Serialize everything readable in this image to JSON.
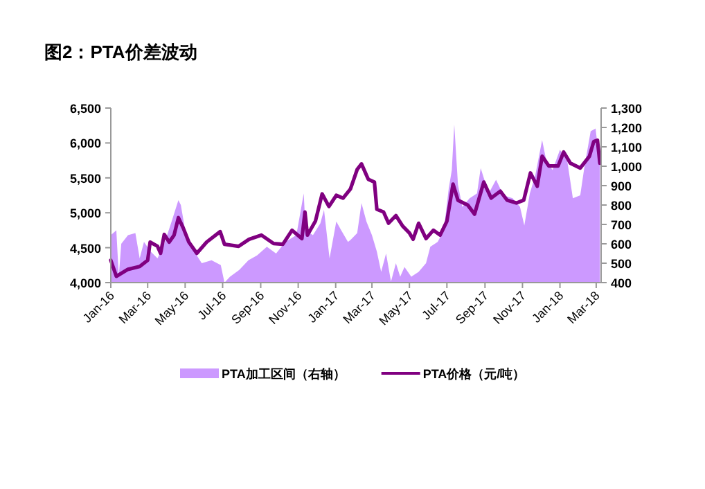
{
  "chart_data": {
    "type": "line",
    "title": "图2：PTA价差波动",
    "legend": "bottom",
    "xlim": [
      "2016-01-01",
      "2018-03-09"
    ],
    "xticks": [
      {
        "value": "2016-01-01",
        "label": "Jan-16"
      },
      {
        "value": "2016-03-01",
        "label": "Mar-16"
      },
      {
        "value": "2016-05-01",
        "label": "May-16"
      },
      {
        "value": "2016-07-01",
        "label": "Jul-16"
      },
      {
        "value": "2016-09-01",
        "label": "Sep-16"
      },
      {
        "value": "2016-11-01",
        "label": "Nov-16"
      },
      {
        "value": "2017-01-01",
        "label": "Jan-17"
      },
      {
        "value": "2017-03-01",
        "label": "Mar-17"
      },
      {
        "value": "2017-05-01",
        "label": "May-17"
      },
      {
        "value": "2017-07-01",
        "label": "Jul-17"
      },
      {
        "value": "2017-09-01",
        "label": "Sep-17"
      },
      {
        "value": "2017-11-01",
        "label": "Nov-17"
      },
      {
        "value": "2018-01-01",
        "label": "Jan-18"
      },
      {
        "value": "2018-03-01",
        "label": "Mar-18"
      }
    ],
    "ylim": [
      4000,
      6500
    ],
    "yticks": [
      {
        "value": 4000,
        "label": "4,000"
      },
      {
        "value": 4500,
        "label": "4,500"
      },
      {
        "value": 5000,
        "label": "5,000"
      },
      {
        "value": 5500,
        "label": "5,500"
      },
      {
        "value": 6000,
        "label": "6,000"
      },
      {
        "value": 6500,
        "label": "6,500"
      }
    ],
    "y2lim": [
      400,
      1300
    ],
    "y2ticks": [
      400,
      500,
      600,
      700,
      800,
      900,
      {
        "value": 1000,
        "label": "1,000"
      },
      {
        "value": 1100,
        "label": "1,100"
      },
      {
        "value": 1200,
        "label": "1,200"
      },
      {
        "value": 1300,
        "label": "1,300"
      }
    ],
    "series": [
      {
        "name": "PTA加工区间（右轴）",
        "type": "area",
        "axis": "y2",
        "color": "#cc99ff",
        "x": [
          "2016-01-01",
          "2016-01-10",
          "2016-01-14",
          "2016-01-18",
          "2016-01-29",
          "2016-02-10",
          "2016-02-17",
          "2016-02-24",
          "2016-03-06",
          "2016-03-17",
          "2016-03-28",
          "2016-04-09",
          "2016-04-20",
          "2016-04-24",
          "2016-05-01",
          "2016-05-13",
          "2016-05-28",
          "2016-06-13",
          "2016-06-28",
          "2016-07-04",
          "2016-07-13",
          "2016-07-28",
          "2016-08-12",
          "2016-08-26",
          "2016-09-11",
          "2016-09-26",
          "2016-10-11",
          "2016-10-29",
          "2016-11-10",
          "2016-11-13",
          "2016-11-25",
          "2016-12-07",
          "2016-12-13",
          "2016-12-22",
          "2017-01-02",
          "2017-01-10",
          "2017-01-21",
          "2017-01-25",
          "2017-02-05",
          "2017-02-12",
          "2017-02-20",
          "2017-03-01",
          "2017-03-09",
          "2017-03-16",
          "2017-03-24",
          "2017-04-01",
          "2017-04-09",
          "2017-04-16",
          "2017-04-23",
          "2017-05-04",
          "2017-05-16",
          "2017-05-28",
          "2017-06-04",
          "2017-06-16",
          "2017-06-26",
          "2017-07-04",
          "2017-07-09",
          "2017-07-13",
          "2017-07-19",
          "2017-07-26",
          "2017-08-07",
          "2017-08-19",
          "2017-08-25",
          "2017-09-07",
          "2017-09-19",
          "2017-10-01",
          "2017-10-16",
          "2017-10-28",
          "2017-11-04",
          "2017-11-13",
          "2017-11-22",
          "2017-12-03",
          "2017-12-10",
          "2017-12-20",
          "2018-01-01",
          "2018-01-13",
          "2018-01-22",
          "2018-02-03",
          "2018-02-10",
          "2018-02-20",
          "2018-02-28",
          "2018-03-07"
        ],
        "values": [
          645,
          670,
          430,
          600,
          645,
          655,
          525,
          610,
          560,
          525,
          600,
          715,
          825,
          800,
          670,
          575,
          500,
          515,
          490,
          400,
          430,
          465,
          515,
          540,
          585,
          550,
          610,
          645,
          860,
          670,
          645,
          705,
          775,
          525,
          715,
          670,
          610,
          620,
          655,
          810,
          715,
          645,
          560,
          455,
          550,
          405,
          500,
          430,
          480,
          430,
          455,
          500,
          585,
          610,
          670,
          885,
          980,
          1215,
          905,
          790,
          835,
          860,
          990,
          860,
          930,
          850,
          835,
          790,
          695,
          860,
          955,
          1135,
          1025,
          980,
          1085,
          1025,
          835,
          850,
          1000,
          1180,
          1195,
          1000
        ]
      },
      {
        "name": "PTA价格（元/吨）",
        "type": "line",
        "axis": "y",
        "color": "#800080",
        "x": [
          "2016-01-01",
          "2016-01-10",
          "2016-01-29",
          "2016-02-17",
          "2016-03-01",
          "2016-03-05",
          "2016-03-17",
          "2016-03-22",
          "2016-03-28",
          "2016-04-05",
          "2016-04-13",
          "2016-04-20",
          "2016-04-28",
          "2016-05-07",
          "2016-05-20",
          "2016-06-05",
          "2016-06-27",
          "2016-07-04",
          "2016-07-27",
          "2016-08-13",
          "2016-09-02",
          "2016-09-22",
          "2016-10-07",
          "2016-10-22",
          "2016-11-07",
          "2016-11-12",
          "2016-11-16",
          "2016-11-29",
          "2016-12-10",
          "2016-12-21",
          "2017-01-02",
          "2017-01-13",
          "2017-01-25",
          "2017-02-05",
          "2017-02-12",
          "2017-02-23",
          "2017-03-05",
          "2017-03-09",
          "2017-03-20",
          "2017-03-28",
          "2017-04-09",
          "2017-04-20",
          "2017-05-01",
          "2017-05-07",
          "2017-05-16",
          "2017-05-28",
          "2017-06-09",
          "2017-06-20",
          "2017-07-01",
          "2017-07-11",
          "2017-07-19",
          "2017-08-04",
          "2017-08-15",
          "2017-08-30",
          "2017-09-11",
          "2017-09-26",
          "2017-10-07",
          "2017-10-22",
          "2017-11-03",
          "2017-11-14",
          "2017-11-25",
          "2017-12-03",
          "2017-12-14",
          "2017-12-29",
          "2018-01-07",
          "2018-01-18",
          "2018-02-03",
          "2018-02-18",
          "2018-02-25",
          "2018-03-03",
          "2018-03-07"
        ],
        "values": [
          4320,
          4090,
          4190,
          4230,
          4320,
          4580,
          4520,
          4420,
          4690,
          4580,
          4680,
          4930,
          4780,
          4580,
          4420,
          4580,
          4730,
          4550,
          4520,
          4620,
          4680,
          4560,
          4550,
          4750,
          4630,
          5010,
          4680,
          4880,
          5270,
          5090,
          5250,
          5210,
          5340,
          5620,
          5700,
          5480,
          5440,
          5050,
          5010,
          4850,
          4960,
          4810,
          4710,
          4620,
          4850,
          4630,
          4750,
          4680,
          4880,
          5410,
          5180,
          5110,
          4980,
          5440,
          5210,
          5310,
          5180,
          5140,
          5180,
          5570,
          5380,
          5810,
          5670,
          5670,
          5870,
          5710,
          5640,
          5810,
          6020,
          6040,
          5710
        ]
      }
    ]
  }
}
